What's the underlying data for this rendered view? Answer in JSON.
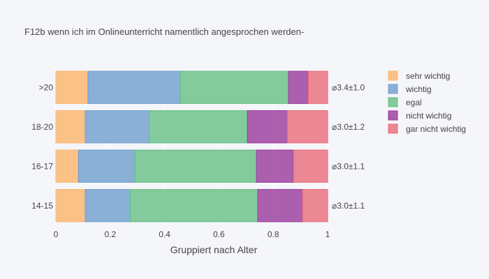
{
  "chart_data": {
    "type": "bar",
    "orientation": "horizontal",
    "stacked": "normalized",
    "title": "F12b wenn ich im Onlineunterricht namentlich angesprochen werden-",
    "xlabel": "Gruppiert nach Alter",
    "ylabel": "",
    "xlim": [
      0,
      1.15
    ],
    "x_ticks": [
      0,
      0.2,
      0.4,
      0.6,
      0.8,
      1
    ],
    "x_tick_labels": [
      "0",
      "0.2",
      "0.4",
      "0.6",
      "0.8",
      "1"
    ],
    "categories": [
      "14-15",
      "16-17",
      "18-20",
      ">20"
    ],
    "series": [
      {
        "name": "sehr wichtig",
        "color": "#fdb56b",
        "values": [
          0.108,
          0.083,
          0.108,
          0.118
        ]
      },
      {
        "name": "wichtig",
        "color": "#6f9fcf",
        "values": [
          0.166,
          0.207,
          0.235,
          0.34
        ]
      },
      {
        "name": "egal",
        "color": "#66bf85",
        "values": [
          0.469,
          0.448,
          0.362,
          0.398
        ]
      },
      {
        "name": "nicht wichtig",
        "color": "#9a3a9b",
        "values": [
          0.165,
          0.137,
          0.147,
          0.073
        ]
      },
      {
        "name": "gar nicht wichtig",
        "color": "#e86d7a",
        "values": [
          0.092,
          0.125,
          0.148,
          0.071
        ]
      }
    ],
    "annotations": [
      "⌀3.0±1.1",
      "⌀3.0±1.1",
      "⌀3.0±1.2",
      "⌀3.4±1.0"
    ],
    "legend_position": "right",
    "grid": true
  }
}
